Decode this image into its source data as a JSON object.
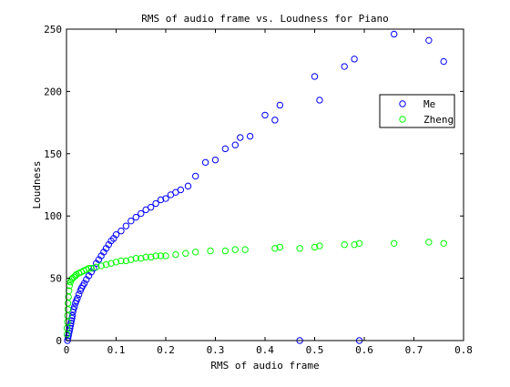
{
  "chart_data": {
    "type": "scatter",
    "title": "RMS of audio frame vs. Loudness for Piano",
    "xlabel": "RMS of audio frame",
    "ylabel": "Loudness",
    "xlim": [
      0,
      0.8
    ],
    "ylim": [
      0,
      250
    ],
    "xticks": [
      0,
      0.1,
      0.2,
      0.3,
      0.4,
      0.5,
      0.6,
      0.7,
      0.8
    ],
    "xtick_labels": [
      "0",
      "0.1",
      "0.2",
      "0.3",
      "0.4",
      "0.5",
      "0.6",
      "0.7",
      "0.8"
    ],
    "yticks": [
      0,
      50,
      100,
      150,
      200,
      250
    ],
    "ytick_labels": [
      "0",
      "50",
      "100",
      "150",
      "200",
      "250"
    ],
    "grid": false,
    "legend_position": "upper-right",
    "marker": "open-circle",
    "series": [
      {
        "name": "Me",
        "color": "#0000ff",
        "points": [
          [
            0.002,
            0
          ],
          [
            0.003,
            2
          ],
          [
            0.004,
            4
          ],
          [
            0.005,
            6
          ],
          [
            0.006,
            8
          ],
          [
            0.007,
            10
          ],
          [
            0.008,
            12
          ],
          [
            0.009,
            14
          ],
          [
            0.01,
            16
          ],
          [
            0.011,
            18
          ],
          [
            0.012,
            20
          ],
          [
            0.013,
            23
          ],
          [
            0.014,
            25
          ],
          [
            0.016,
            27
          ],
          [
            0.018,
            30
          ],
          [
            0.02,
            32
          ],
          [
            0.022,
            34
          ],
          [
            0.025,
            37
          ],
          [
            0.028,
            40
          ],
          [
            0.03,
            42
          ],
          [
            0.033,
            44
          ],
          [
            0.036,
            46
          ],
          [
            0.04,
            49
          ],
          [
            0.045,
            52
          ],
          [
            0.05,
            55
          ],
          [
            0.055,
            58
          ],
          [
            0.06,
            62
          ],
          [
            0.065,
            65
          ],
          [
            0.07,
            68
          ],
          [
            0.075,
            71
          ],
          [
            0.08,
            74
          ],
          [
            0.085,
            77
          ],
          [
            0.09,
            80
          ],
          [
            0.095,
            82
          ],
          [
            0.1,
            85
          ],
          [
            0.11,
            88
          ],
          [
            0.12,
            92
          ],
          [
            0.13,
            96
          ],
          [
            0.14,
            99
          ],
          [
            0.15,
            102
          ],
          [
            0.16,
            105
          ],
          [
            0.17,
            107
          ],
          [
            0.18,
            110
          ],
          [
            0.19,
            113
          ],
          [
            0.2,
            114
          ],
          [
            0.21,
            117
          ],
          [
            0.22,
            119
          ],
          [
            0.23,
            121
          ],
          [
            0.245,
            124
          ],
          [
            0.26,
            132
          ],
          [
            0.28,
            143
          ],
          [
            0.3,
            145
          ],
          [
            0.32,
            154
          ],
          [
            0.34,
            157
          ],
          [
            0.35,
            163
          ],
          [
            0.37,
            164
          ],
          [
            0.4,
            181
          ],
          [
            0.42,
            177
          ],
          [
            0.43,
            189
          ],
          [
            0.5,
            212
          ],
          [
            0.51,
            193
          ],
          [
            0.56,
            220
          ],
          [
            0.58,
            226
          ],
          [
            0.66,
            246
          ],
          [
            0.73,
            241
          ],
          [
            0.76,
            224
          ],
          [
            0.47,
            0
          ],
          [
            0.59,
            0
          ]
        ]
      },
      {
        "name": "Zheng",
        "color": "#00ff00",
        "points": [
          [
            0.001,
            5
          ],
          [
            0.001,
            10
          ],
          [
            0.002,
            15
          ],
          [
            0.002,
            20
          ],
          [
            0.003,
            25
          ],
          [
            0.003,
            30
          ],
          [
            0.004,
            35
          ],
          [
            0.005,
            40
          ],
          [
            0.006,
            44
          ],
          [
            0.008,
            47
          ],
          [
            0.01,
            49
          ],
          [
            0.012,
            50
          ],
          [
            0.015,
            51
          ],
          [
            0.018,
            52
          ],
          [
            0.02,
            53
          ],
          [
            0.025,
            54
          ],
          [
            0.03,
            55
          ],
          [
            0.035,
            56
          ],
          [
            0.04,
            57
          ],
          [
            0.045,
            58
          ],
          [
            0.05,
            58
          ],
          [
            0.06,
            59
          ],
          [
            0.07,
            60
          ],
          [
            0.08,
            61
          ],
          [
            0.09,
            62
          ],
          [
            0.1,
            63
          ],
          [
            0.11,
            64
          ],
          [
            0.12,
            64
          ],
          [
            0.13,
            65
          ],
          [
            0.14,
            66
          ],
          [
            0.15,
            66
          ],
          [
            0.16,
            67
          ],
          [
            0.17,
            67
          ],
          [
            0.18,
            68
          ],
          [
            0.19,
            68
          ],
          [
            0.2,
            68
          ],
          [
            0.22,
            69
          ],
          [
            0.24,
            70
          ],
          [
            0.26,
            71
          ],
          [
            0.29,
            72
          ],
          [
            0.32,
            72
          ],
          [
            0.34,
            73
          ],
          [
            0.36,
            73
          ],
          [
            0.42,
            74
          ],
          [
            0.43,
            75
          ],
          [
            0.47,
            74
          ],
          [
            0.5,
            75
          ],
          [
            0.51,
            76
          ],
          [
            0.56,
            77
          ],
          [
            0.58,
            77
          ],
          [
            0.59,
            78
          ],
          [
            0.66,
            78
          ],
          [
            0.73,
            79
          ],
          [
            0.76,
            78
          ]
        ]
      }
    ]
  }
}
